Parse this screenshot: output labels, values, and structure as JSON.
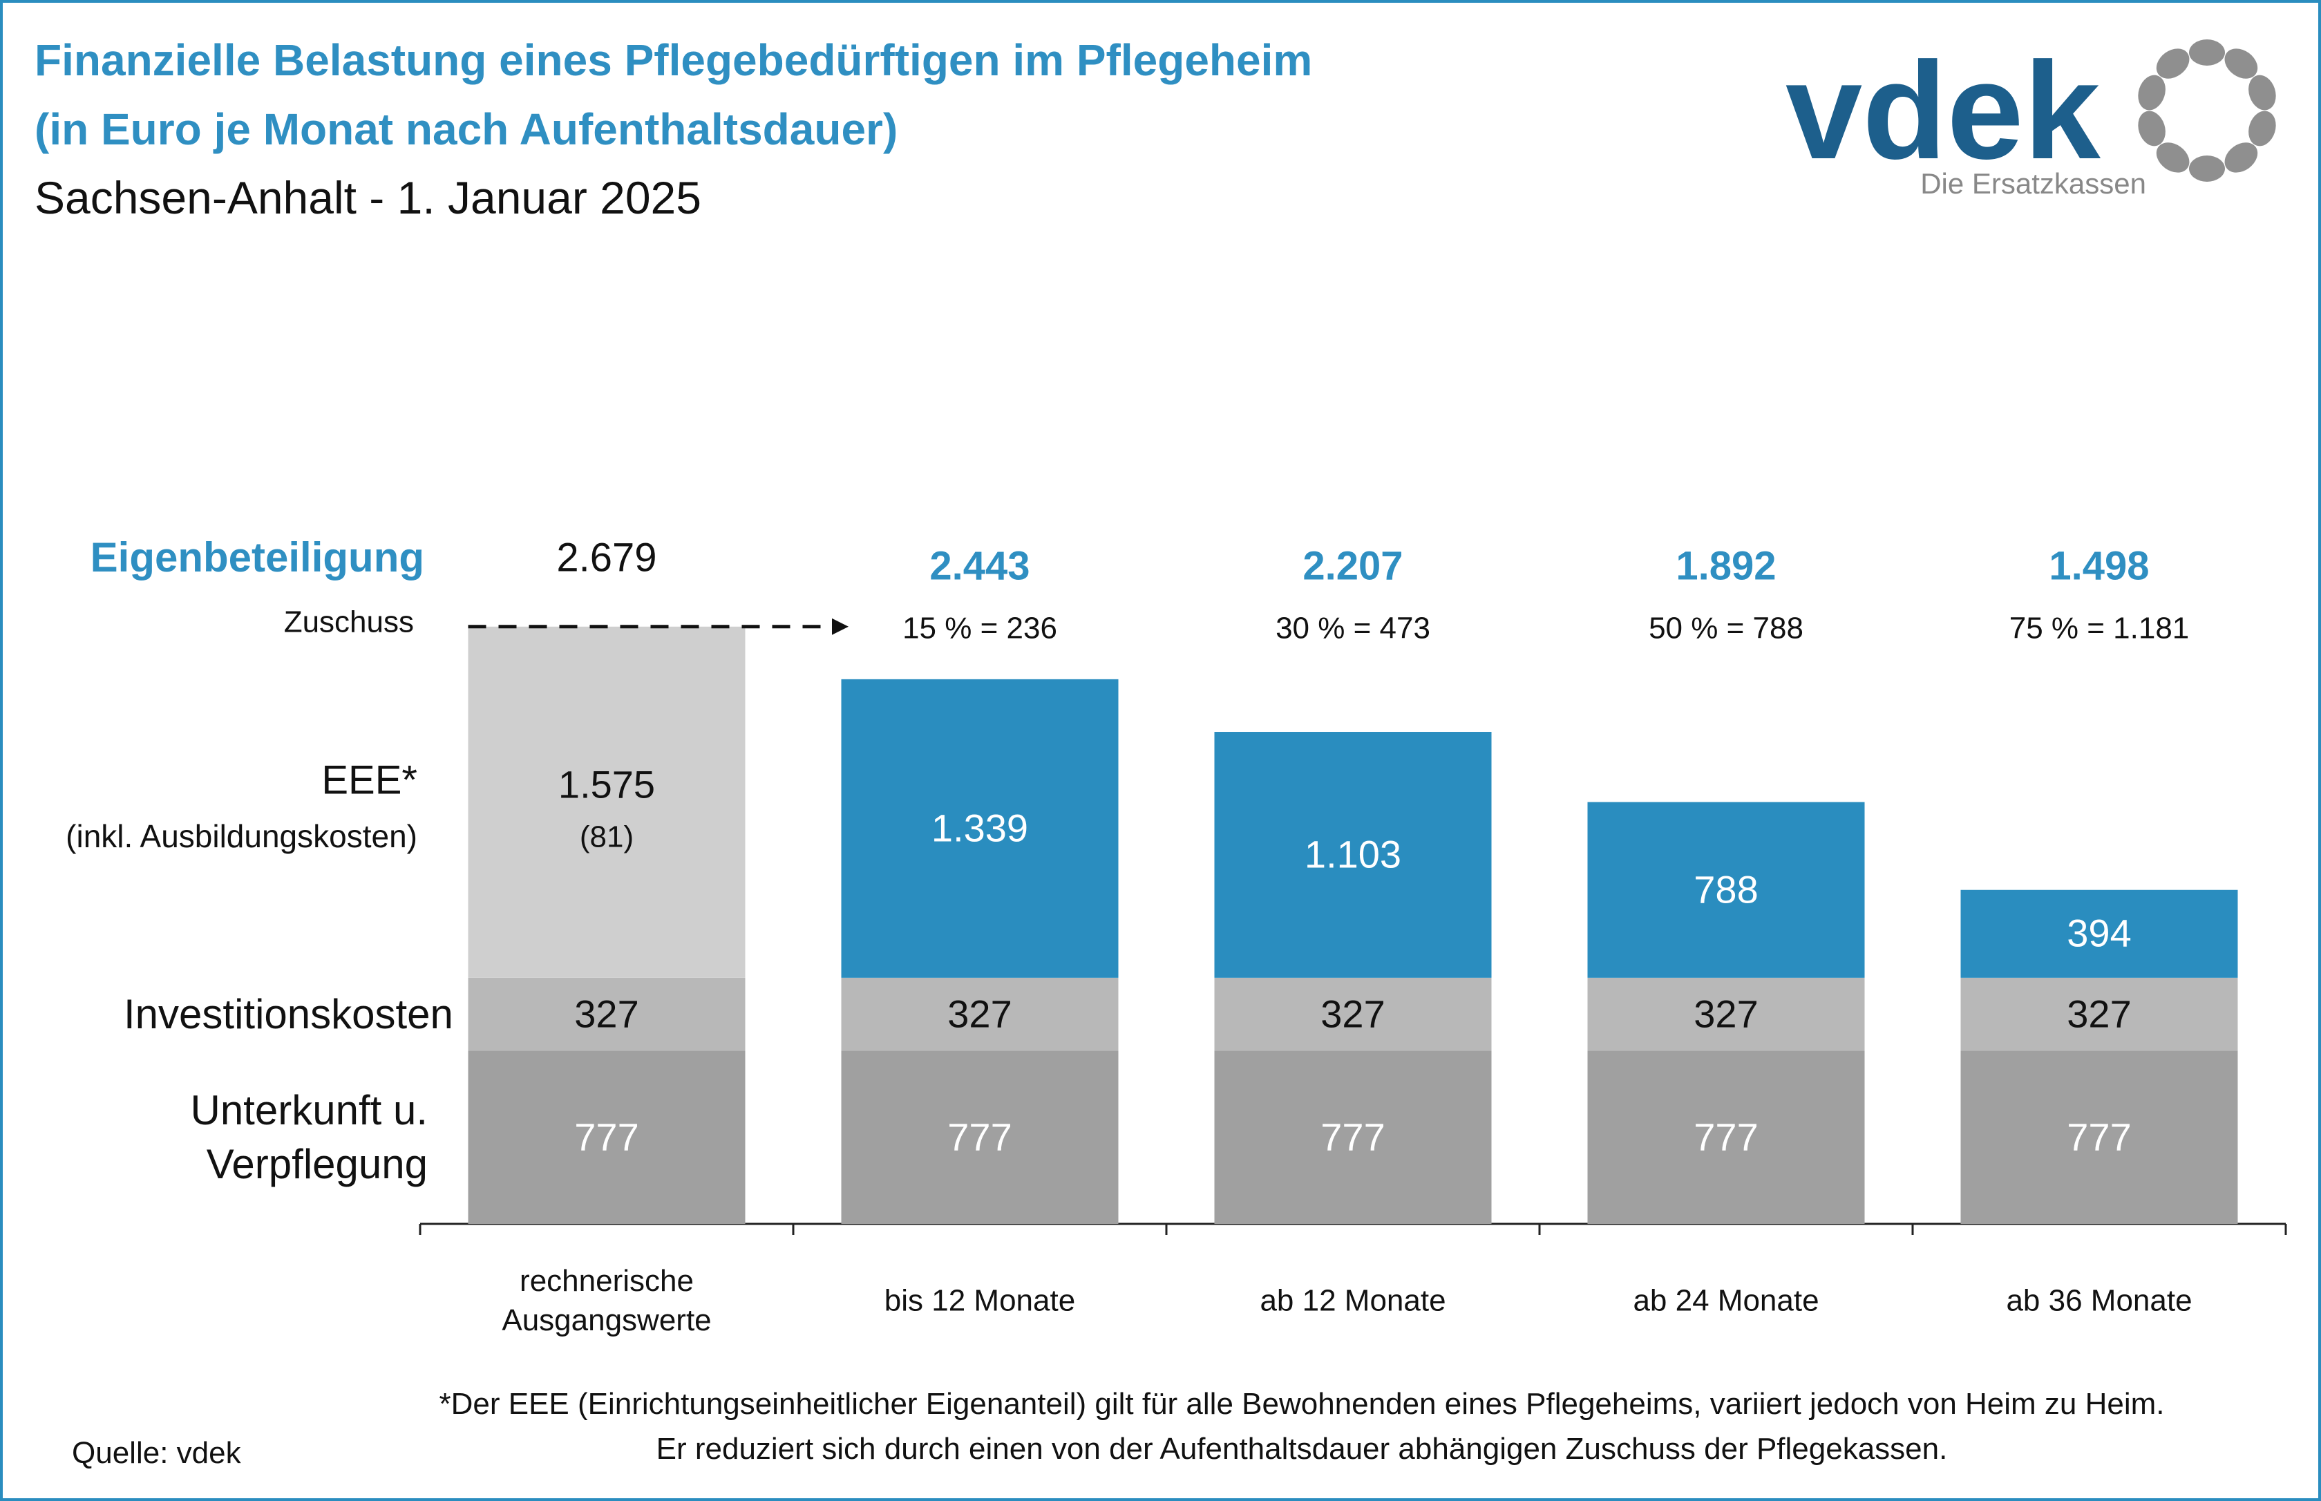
{
  "chart_data": {
    "type": "stacked-bar",
    "title": "Finanzielle Belastung eines Pflegebedürftigen im Pflegeheim",
    "subtitle": "(in Euro je Monat nach Aufenthaltsdauer)",
    "subtitle2": "Sachsen-Anhalt - 1. Januar 2025",
    "categories": [
      "rechnerische Ausgangswerte",
      "bis 12 Monate",
      "ab 12 Monate",
      "ab 24 Monate",
      "ab 36 Monate"
    ],
    "series": [
      {
        "name": "Unterkunft u. Verpflegung",
        "color": "#a0a0a0",
        "values": [
          777,
          777,
          777,
          777,
          777
        ]
      },
      {
        "name": "Investitionskosten",
        "color": "#b8b8b8",
        "values": [
          327,
          327,
          327,
          327,
          327
        ]
      },
      {
        "name": "EEE*",
        "note": "(inkl. Ausbildungskosten)",
        "colors": [
          "#cfcfcf",
          "#2a8dbf",
          "#2a8dbf",
          "#2a8dbf",
          "#2a8dbf"
        ],
        "values": [
          1575,
          1339,
          1103,
          788,
          394
        ],
        "value_labels": [
          "1.575",
          "1.339",
          "1.103",
          "788",
          "394"
        ]
      }
    ],
    "ausbildungskosten": {
      "value": 81,
      "label": "(81)"
    },
    "eigenbeteiligung": {
      "label": "Eigenbeteiligung",
      "values": [
        2679,
        2443,
        2207,
        1892,
        1498
      ],
      "value_labels": [
        "2.679",
        "2.443",
        "2.207",
        "1.892",
        "1.498"
      ]
    },
    "zuschuss": {
      "label": "Zuschuss",
      "values": [
        null,
        236,
        473,
        788,
        1181
      ],
      "value_labels": [
        null,
        "15 % = 236",
        "30 % = 473",
        "50 % = 788",
        "75 % = 1.181"
      ]
    },
    "ylim": [
      0,
      2800
    ],
    "footnote": "*Der EEE (Einrichtungseinheitlicher Eigenanteil) gilt für alle Bewohnenden eines Pflegeheims, variiert jedoch von Heim zu Heim. Er reduziert sich durch einen von der Aufenthaltsdauer abhängigen Zuschuss der Pflegekassen.",
    "source": "Quelle: vdek"
  },
  "logo": {
    "name": "vdek",
    "tagline": "Die Ersatzkassen"
  }
}
